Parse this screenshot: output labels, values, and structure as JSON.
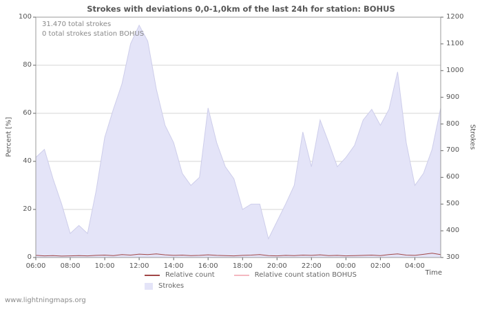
{
  "title": "Strokes with deviations 0,0-1,0km of the last 24h for station: BOHUS",
  "annotations": {
    "total_strokes": "31.470 total strokes",
    "station_strokes": "0 total strokes station BOHUS"
  },
  "watermark": "www.lightningmaps.org",
  "colors": {
    "area_fill": "#e4e4f8",
    "area_edge": "#cdcdea",
    "relative_count_line": "#a04545",
    "station_line": "#f4b8c0",
    "grid": "#d4d4d4",
    "plot_border": "#9a9a9a",
    "text": "#555555"
  },
  "axes": {
    "left": {
      "label": "Percent  [%]",
      "ticks": [
        0,
        20,
        40,
        60,
        80,
        100
      ]
    },
    "right": {
      "label": "Strokes",
      "ticks": [
        300,
        400,
        500,
        600,
        700,
        800,
        900,
        1000,
        1100,
        1200
      ]
    },
    "x": {
      "label": "Time",
      "tick_labels": [
        "06:00",
        "08:00",
        "10:00",
        "12:00",
        "14:00",
        "16:00",
        "18:00",
        "20:00",
        "22:00",
        "00:00",
        "02:00",
        "04:00"
      ],
      "tick_hours": [
        0,
        2,
        4,
        6,
        8,
        10,
        12,
        14,
        16,
        18,
        20,
        22
      ]
    }
  },
  "legend": {
    "items": [
      {
        "label": "Relative count",
        "color": "#a04545",
        "type": "line"
      },
      {
        "label": "Relative count station BOHUS",
        "color": "#f4b8c0",
        "type": "line"
      },
      {
        "label": "Strokes",
        "color": "#e4e4f8",
        "type": "area"
      }
    ]
  },
  "chart_data": {
    "type": "area",
    "title": "Strokes with deviations 0,0-1,0km of the last 24h for station: BOHUS",
    "x_start": "06:00",
    "x_step_hours": 0.5,
    "x_span_hours": 24,
    "grid": true,
    "legend_position": "bottom",
    "y_left": {
      "label": "Percent [%]",
      "range": [
        0,
        100
      ]
    },
    "y_right": {
      "label": "Strokes",
      "range": [
        300,
        1200
      ]
    },
    "series": [
      {
        "name": "Strokes",
        "type": "area",
        "axis": "right",
        "color": "#e4e4f8",
        "values": [
          675,
          705,
          595,
          500,
          390,
          420,
          390,
          550,
          750,
          855,
          950,
          1100,
          1170,
          1110,
          930,
          795,
          730,
          615,
          570,
          600,
          860,
          730,
          640,
          595,
          480,
          500,
          500,
          370,
          435,
          500,
          570,
          770,
          640,
          815,
          730,
          640,
          675,
          720,
          815,
          855,
          795,
          855,
          995,
          730,
          570,
          615,
          705,
          860
        ]
      },
      {
        "name": "Relative count",
        "type": "line",
        "axis": "left",
        "color": "#a04545",
        "values": [
          0.9,
          0.7,
          0.8,
          0.6,
          0.7,
          0.8,
          0.7,
          0.9,
          1.0,
          0.8,
          1.2,
          1.0,
          1.4,
          1.2,
          1.5,
          1.1,
          0.9,
          1.0,
          0.8,
          0.9,
          1.1,
          0.9,
          0.8,
          0.7,
          0.9,
          1.0,
          1.2,
          0.8,
          0.7,
          0.9,
          0.8,
          1.0,
          0.9,
          1.1,
          0.8,
          0.9,
          0.7,
          0.8,
          0.9,
          1.0,
          0.8,
          1.2,
          1.5,
          1.0,
          0.9,
          1.3,
          1.8,
          1.2
        ]
      },
      {
        "name": "Relative count station BOHUS",
        "type": "line",
        "axis": "left",
        "color": "#f4b8c0",
        "values": [
          0,
          0,
          0,
          0,
          0,
          0,
          0,
          0,
          0,
          0,
          0,
          0,
          0,
          0,
          0,
          0,
          0,
          0,
          0,
          0,
          0,
          0,
          0,
          0,
          0,
          0,
          0,
          0,
          0,
          0,
          0,
          0,
          0,
          0,
          0,
          0,
          0,
          0,
          0,
          0,
          0,
          0,
          0,
          0,
          0,
          0,
          0,
          0
        ]
      }
    ]
  }
}
